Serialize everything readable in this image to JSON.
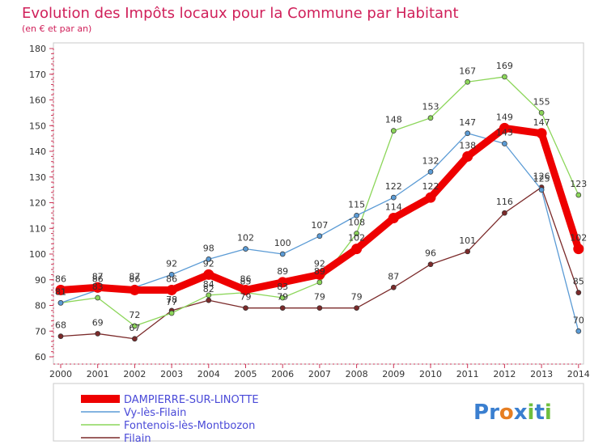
{
  "chart_data": {
    "type": "line",
    "title": "Evolution des Impôts locaux pour la Commune par Habitant",
    "subtitle": "(en € et par an)",
    "categories": [
      "2000",
      "2001",
      "2002",
      "2003",
      "2004",
      "2005",
      "2006",
      "2007",
      "2008",
      "2009",
      "2010",
      "2011",
      "2012",
      "2013",
      "2014"
    ],
    "ylim": [
      60,
      180
    ],
    "yticks": [
      60,
      70,
      80,
      90,
      100,
      110,
      120,
      130,
      140,
      150,
      160,
      170,
      180
    ],
    "grid": false,
    "legend_position": "bottom-left",
    "series": [
      {
        "name": "DAMPIERRE-SUR-LINOTTE",
        "color": "#ee0000",
        "values": [
          86,
          87,
          86,
          86,
          92,
          86,
          89,
          92,
          102,
          114,
          122,
          138,
          149,
          147,
          102
        ]
      },
      {
        "name": "Vy-lès-Filain",
        "color": "#5b9bd5",
        "values": [
          81,
          86,
          87,
          92,
          98,
          102,
          100,
          107,
          115,
          122,
          132,
          147,
          143,
          125,
          70
        ]
      },
      {
        "name": "Fontenois-lès-Montbozon",
        "color": "#8cd65a",
        "values": [
          81,
          83,
          72,
          77,
          84,
          85,
          83,
          89,
          108,
          148,
          153,
          167,
          169,
          155,
          123
        ]
      },
      {
        "name": "Filain",
        "color": "#7b2a2a",
        "values": [
          68,
          69,
          67,
          78,
          82,
          79,
          79,
          79,
          79,
          87,
          96,
          101,
          116,
          126,
          85
        ]
      }
    ],
    "brand": {
      "text": "Proxiti",
      "letters": [
        "P",
        "r",
        "o",
        "x",
        "i",
        "t",
        "i"
      ],
      "colors": [
        "#3a7fd0",
        "#3a7fd0",
        "#e67e22",
        "#3a7fd0",
        "#6fbf3f",
        "#3a7fd0",
        "#6fbf3f"
      ]
    }
  }
}
